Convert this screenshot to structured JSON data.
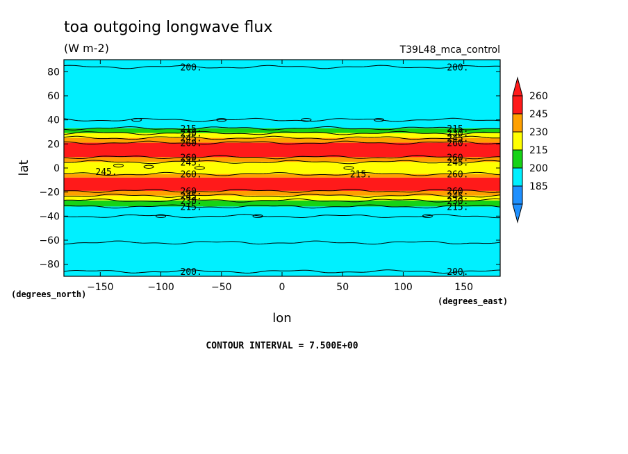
{
  "chart_data": {
    "type": "heatmap",
    "title": "toa outgoing longwave flux",
    "units": "(W m-2)",
    "experiment": "T39L48_mca_control",
    "xlabel": "lon",
    "ylabel": "lat",
    "x_units_label": "(degrees_east)",
    "y_units_label": "(degrees_north)",
    "xlim": [
      -180,
      180
    ],
    "ylim": [
      -90,
      90
    ],
    "x_ticks": [
      -150,
      -100,
      -50,
      0,
      50,
      100,
      150
    ],
    "y_ticks": [
      80,
      60,
      40,
      20,
      0,
      -20,
      -40,
      -60,
      -80
    ],
    "footer": "CONTOUR INTERVAL = 7.500E+00",
    "colorbar": {
      "labels": [
        "260",
        "245",
        "230",
        "215",
        "200",
        "185"
      ],
      "levels": [
        185,
        200,
        215,
        230,
        245,
        260
      ],
      "colors": [
        "#1e90ff",
        "#00f0ff",
        "#16d316",
        "#ffff00",
        "#ffa000",
        "#ff1a1a"
      ],
      "over_color": "#ff1a1a",
      "under_color": "#1e90ff"
    },
    "bands": [
      {
        "lat_from": 90,
        "lat_to": 33,
        "color": "#00f0ff"
      },
      {
        "lat_from": 33,
        "lat_to": 29,
        "color": "#16d316"
      },
      {
        "lat_from": 29,
        "lat_to": 25,
        "color": "#ffff00"
      },
      {
        "lat_from": 25,
        "lat_to": 21,
        "color": "#ffa000"
      },
      {
        "lat_from": 21,
        "lat_to": 9,
        "color": "#ff1a1a"
      },
      {
        "lat_from": 9,
        "lat_to": 5,
        "color": "#ffa000"
      },
      {
        "lat_from": 5,
        "lat_to": -5,
        "color": "#ffff00"
      },
      {
        "lat_from": -5,
        "lat_to": -8,
        "color": "#ffa000"
      },
      {
        "lat_from": -8,
        "lat_to": -19,
        "color": "#ff1a1a"
      },
      {
        "lat_from": -19,
        "lat_to": -23,
        "color": "#ffa000"
      },
      {
        "lat_from": -23,
        "lat_to": -27,
        "color": "#ffff00"
      },
      {
        "lat_from": -27,
        "lat_to": -32,
        "color": "#16d316"
      },
      {
        "lat_from": -32,
        "lat_to": -90,
        "color": "#00f0ff"
      }
    ],
    "contours": [
      {
        "lat": 84,
        "label": "200."
      },
      {
        "lat": 40,
        "label": ""
      },
      {
        "lat": 33,
        "label": "215."
      },
      {
        "lat": 29,
        "label": "230."
      },
      {
        "lat": 25,
        "label": "245."
      },
      {
        "lat": 21,
        "label": "260."
      },
      {
        "lat": 9,
        "label": "260."
      },
      {
        "lat": 5,
        "label": "245."
      },
      {
        "lat": -5,
        "label": "260."
      },
      {
        "lat": -19,
        "label": "260."
      },
      {
        "lat": -23,
        "label": "245."
      },
      {
        "lat": -27,
        "label": "230."
      },
      {
        "lat": -32,
        "label": "215."
      },
      {
        "lat": -40,
        "label": ""
      },
      {
        "lat": -62,
        "label": ""
      },
      {
        "lat": -86,
        "label": "200."
      }
    ],
    "annotations": [
      {
        "text": "245.",
        "lon": -145,
        "lat": -3
      },
      {
        "text": "215.",
        "lon": 65,
        "lat": -5
      }
    ]
  }
}
